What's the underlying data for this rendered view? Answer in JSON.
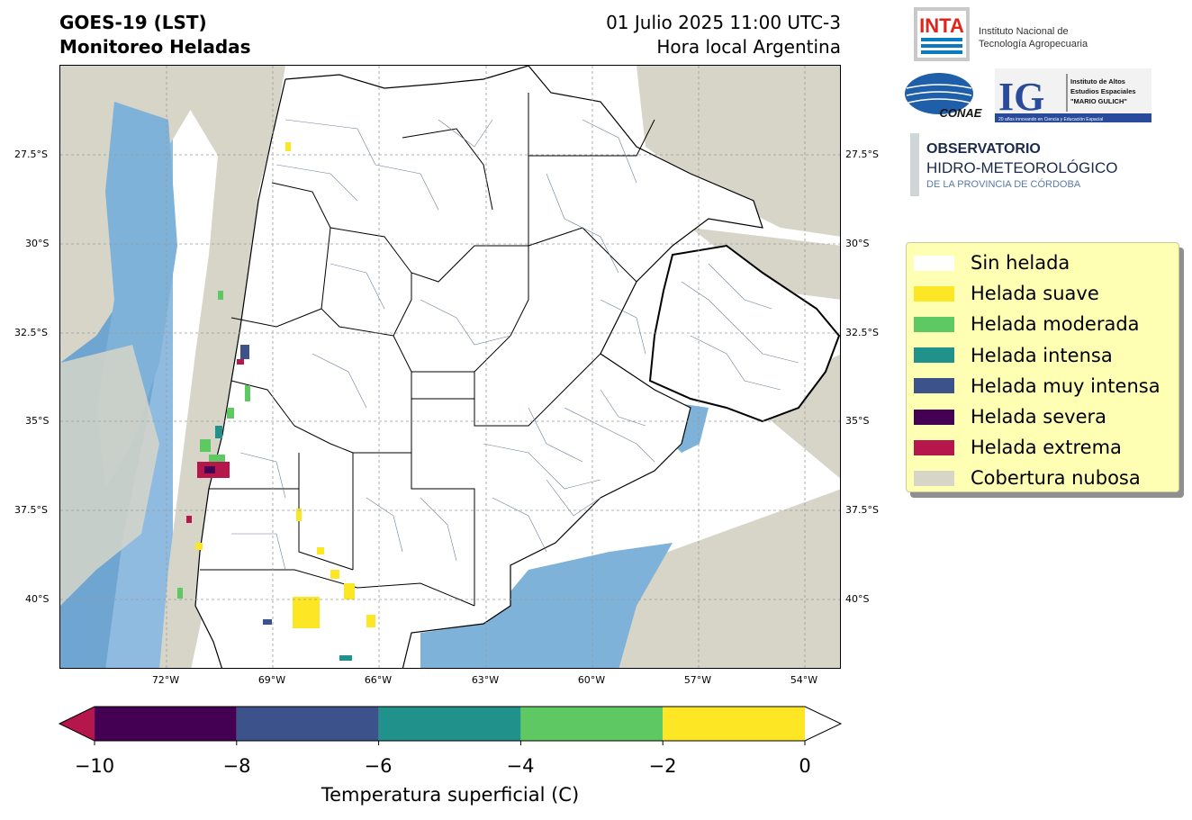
{
  "header": {
    "title_line1": "GOES-19 (LST)",
    "title_line2": "Monitoreo Heladas",
    "date_line": "01 Julio 2025 11:00 UTC-3",
    "local_line": "Hora local Argentina"
  },
  "map": {
    "latitude_labels": [
      "27.5°S",
      "30°S",
      "32.5°S",
      "35°S",
      "37.5°S",
      "40°S"
    ],
    "longitude_labels": [
      "72°W",
      "69°W",
      "66°W",
      "63°W",
      "60°W",
      "57°W",
      "54°W"
    ],
    "grid": "dashed",
    "colors": {
      "ocean_satellite": "#7eb2d8",
      "cloud": "#d6d5c8",
      "no_frost": "#ffffff",
      "borders": "#000000",
      "departments": "#6d7f96"
    }
  },
  "logos": {
    "inta_mark": "INTA",
    "inta_name_line1": "Instituto Nacional de",
    "inta_name_line2": "Tecnología Agropecuaria",
    "conae_mark": "CONAE",
    "ig_mark": "IG",
    "ig_name_line1": "Instituto de Altos",
    "ig_name_line2": "Estudios Espaciales",
    "ig_name_line3": "\"MARIO GULICH\"",
    "ig_tagline": "20 años innovando en Ciencia y Educación Espacial",
    "observatorio_line1": "OBSERVATORIO",
    "observatorio_line2": "HIDRO-METEOROLÓGICO",
    "observatorio_line3": "DE LA PROVINCIA DE CÓRDOBA"
  },
  "legend": {
    "items": [
      {
        "label": "Sin helada",
        "color": "#ffffff"
      },
      {
        "label": "Helada suave",
        "color": "#fde725"
      },
      {
        "label": "Helada moderada",
        "color": "#5ec962"
      },
      {
        "label": "Helada intensa",
        "color": "#21918c"
      },
      {
        "label": "Helada muy intensa",
        "color": "#3b528b"
      },
      {
        "label": "Helada severa",
        "color": "#440154"
      },
      {
        "label": "Helada extrema",
        "color": "#b5174c"
      },
      {
        "label": "Cobertura nubosa",
        "color": "#d6d5c8"
      }
    ]
  },
  "colorbar": {
    "ticks": [
      "−10",
      "−8",
      "−6",
      "−4",
      "−2",
      "0"
    ],
    "label": "Temperatura superficial (C)",
    "bins": [
      {
        "from": -10,
        "to": -8,
        "color": "#440154"
      },
      {
        "from": -8,
        "to": -6,
        "color": "#3b528b"
      },
      {
        "from": -6,
        "to": -4,
        "color": "#21918c"
      },
      {
        "from": -4,
        "to": -2,
        "color": "#5ec962"
      },
      {
        "from": -2,
        "to": 0,
        "color": "#fde725"
      }
    ],
    "under_color": "#b5174c",
    "over_color": "#ffffff"
  }
}
